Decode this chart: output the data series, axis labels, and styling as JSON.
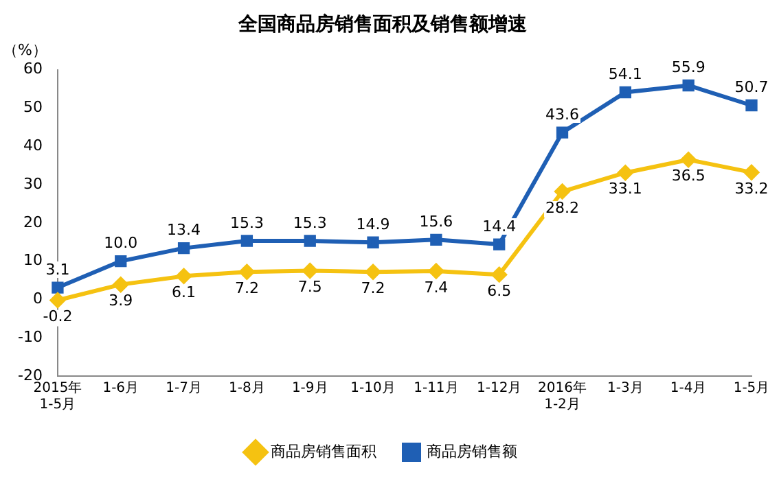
{
  "chart_data": {
    "type": "line",
    "title": "全国商品房销售面积及销售额增速",
    "ylabel": "（%）",
    "categories": [
      "2015年\n1-5月",
      "1-6月",
      "1-7月",
      "1-8月",
      "1-9月",
      "1-10月",
      "1-11月",
      "1-12月",
      "2016年\n1-2月",
      "1-3月",
      "1-4月",
      "1-5月"
    ],
    "series": [
      {
        "name": "商品房销售面积",
        "color": "#f5c211",
        "marker": "diamond",
        "values": [
          -0.2,
          3.9,
          6.1,
          7.2,
          7.5,
          7.2,
          7.4,
          6.5,
          28.2,
          33.1,
          36.5,
          33.2
        ],
        "value_labels": [
          "-0.2",
          "3.9",
          "6.1",
          "7.2",
          "7.5",
          "7.2",
          "7.4",
          "6.5",
          "28.2",
          "33.1",
          "36.5",
          "33.2"
        ]
      },
      {
        "name": "商品房销售额",
        "color": "#1f5fb4",
        "marker": "square",
        "values": [
          3.1,
          10.0,
          13.4,
          15.3,
          15.3,
          14.9,
          15.6,
          14.4,
          43.6,
          54.1,
          55.9,
          50.7
        ],
        "value_labels": [
          "3.1",
          "10.0",
          "13.4",
          "15.3",
          "15.3",
          "14.9",
          "15.6",
          "14.4",
          "43.6",
          "54.1",
          "55.9",
          "50.7"
        ]
      }
    ],
    "ylim": [
      -20,
      60
    ],
    "yticks": [
      -20,
      -10,
      0,
      10,
      20,
      30,
      40,
      50,
      60
    ],
    "grid": false,
    "legend": "bottom"
  }
}
